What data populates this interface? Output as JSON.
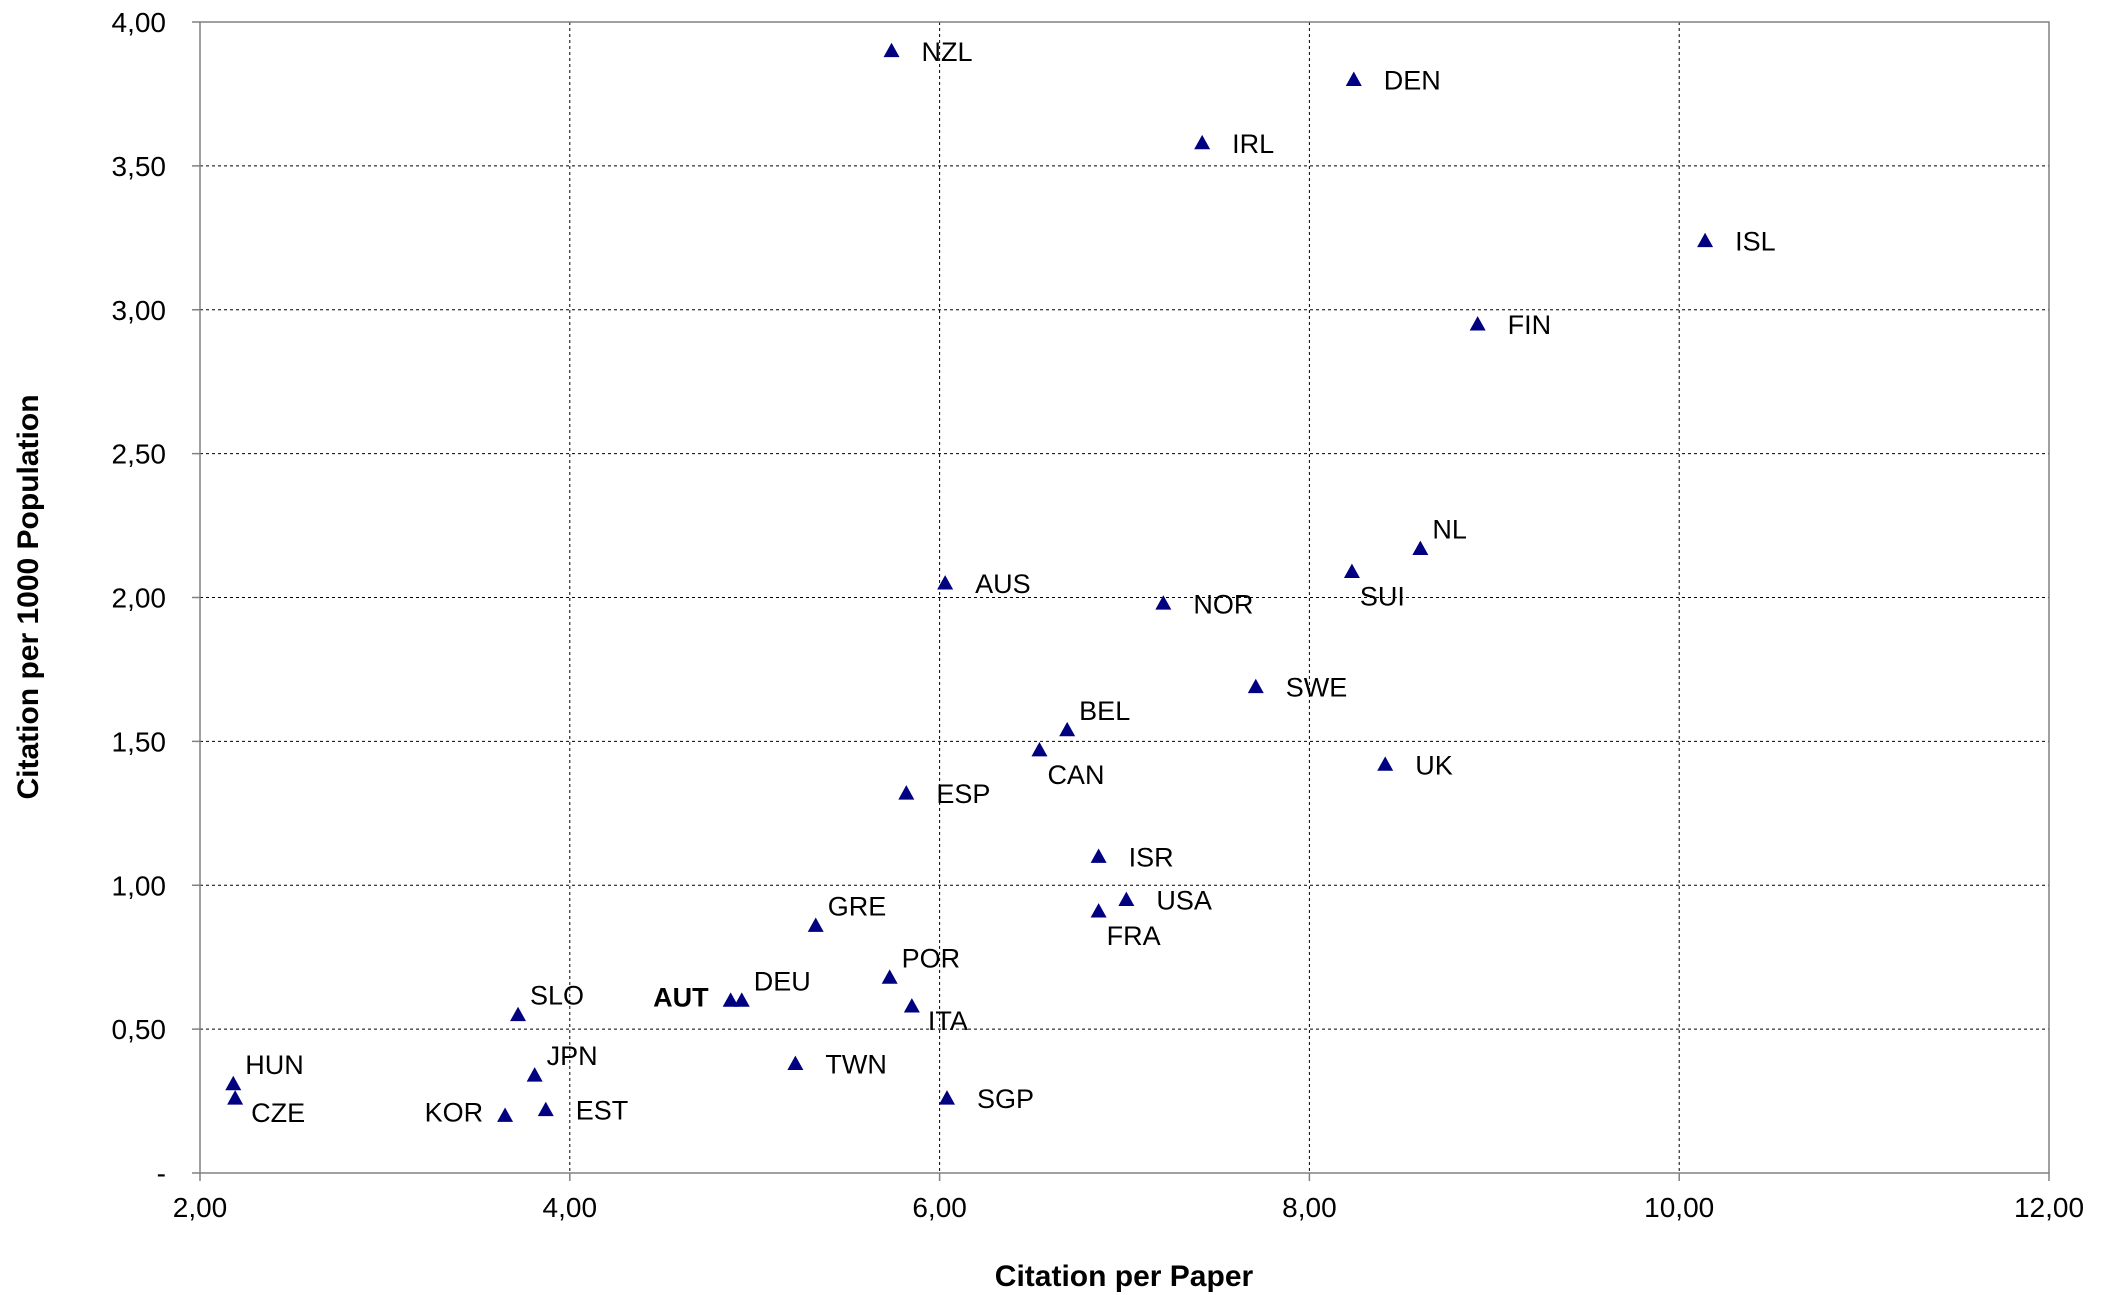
{
  "chart_data": {
    "type": "scatter",
    "title": "",
    "xlabel": "Citation per Paper",
    "ylabel": "Citation per 1000 Population",
    "xlim": [
      2,
      12
    ],
    "ylim": [
      0,
      4
    ],
    "grid": true,
    "legend": false,
    "marker": "triangle",
    "marker_color": "#000080",
    "highlight_color": "#C00000",
    "x_ticks": [
      {
        "value": 2,
        "label": "2,00"
      },
      {
        "value": 4,
        "label": "4,00"
      },
      {
        "value": 6,
        "label": "6,00"
      },
      {
        "value": 8,
        "label": "8,00"
      },
      {
        "value": 10,
        "label": "10,00"
      },
      {
        "value": 12,
        "label": "12,00"
      }
    ],
    "y_ticks": [
      {
        "value": 0,
        "label": "-"
      },
      {
        "value": 0.5,
        "label": "0,50"
      },
      {
        "value": 1,
        "label": "1,00"
      },
      {
        "value": 1.5,
        "label": "1,50"
      },
      {
        "value": 2,
        "label": "2,00"
      },
      {
        "value": 2.5,
        "label": "2,50"
      },
      {
        "value": 3,
        "label": "3,00"
      },
      {
        "value": 3.5,
        "label": "3,50"
      },
      {
        "value": 4,
        "label": "4,00"
      }
    ],
    "points": [
      {
        "label": "NZL",
        "x": 5.74,
        "y": 3.9,
        "label_pos": "right"
      },
      {
        "label": "DEN",
        "x": 8.24,
        "y": 3.8,
        "label_pos": "right"
      },
      {
        "label": "IRL",
        "x": 7.42,
        "y": 3.58,
        "label_pos": "right"
      },
      {
        "label": "ISL",
        "x": 10.14,
        "y": 3.24,
        "label_pos": "right"
      },
      {
        "label": "FIN",
        "x": 8.91,
        "y": 2.95,
        "label_pos": "right"
      },
      {
        "label": "NL",
        "x": 8.6,
        "y": 2.17,
        "label_pos": "right-above"
      },
      {
        "label": "SUI",
        "x": 8.23,
        "y": 2.09,
        "label_pos": "below"
      },
      {
        "label": "AUS",
        "x": 6.03,
        "y": 2.05,
        "label_pos": "right"
      },
      {
        "label": "NOR",
        "x": 7.21,
        "y": 1.98,
        "label_pos": "right"
      },
      {
        "label": "SWE",
        "x": 7.71,
        "y": 1.69,
        "label_pos": "right"
      },
      {
        "label": "BEL",
        "x": 6.69,
        "y": 1.54,
        "label_pos": "right-above"
      },
      {
        "label": "CAN",
        "x": 6.54,
        "y": 1.47,
        "label_pos": "below"
      },
      {
        "label": "UK",
        "x": 8.41,
        "y": 1.42,
        "label_pos": "right"
      },
      {
        "label": "ESP",
        "x": 5.82,
        "y": 1.32,
        "label_pos": "right"
      },
      {
        "label": "ISR",
        "x": 6.86,
        "y": 1.1,
        "label_pos": "right"
      },
      {
        "label": "USA",
        "x": 7.01,
        "y": 0.95,
        "label_pos": "right"
      },
      {
        "label": "FRA",
        "x": 6.86,
        "y": 0.91,
        "label_pos": "below"
      },
      {
        "label": "GRE",
        "x": 5.33,
        "y": 0.86,
        "label_pos": "right-above"
      },
      {
        "label": "POR",
        "x": 5.73,
        "y": 0.68,
        "label_pos": "right-above"
      },
      {
        "label": "DEU",
        "x": 4.93,
        "y": 0.6,
        "label_pos": "right-above"
      },
      {
        "label": "AUT",
        "x": 4.87,
        "y": 0.6,
        "label_pos": "left",
        "highlight": true
      },
      {
        "label": "ITA",
        "x": 5.85,
        "y": 0.58,
        "label_pos": "below-right"
      },
      {
        "label": "SLO",
        "x": 3.72,
        "y": 0.55,
        "label_pos": "right-above"
      },
      {
        "label": "TWN",
        "x": 5.22,
        "y": 0.38,
        "label_pos": "right"
      },
      {
        "label": "JPN",
        "x": 3.81,
        "y": 0.34,
        "label_pos": "right-above"
      },
      {
        "label": "HUN",
        "x": 2.18,
        "y": 0.31,
        "label_pos": "right-above"
      },
      {
        "label": "CZE",
        "x": 2.19,
        "y": 0.26,
        "label_pos": "below-right"
      },
      {
        "label": "SGP",
        "x": 6.04,
        "y": 0.26,
        "label_pos": "right"
      },
      {
        "label": "EST",
        "x": 3.87,
        "y": 0.22,
        "label_pos": "right"
      },
      {
        "label": "KOR",
        "x": 3.65,
        "y": 0.2,
        "label_pos": "left"
      }
    ]
  }
}
